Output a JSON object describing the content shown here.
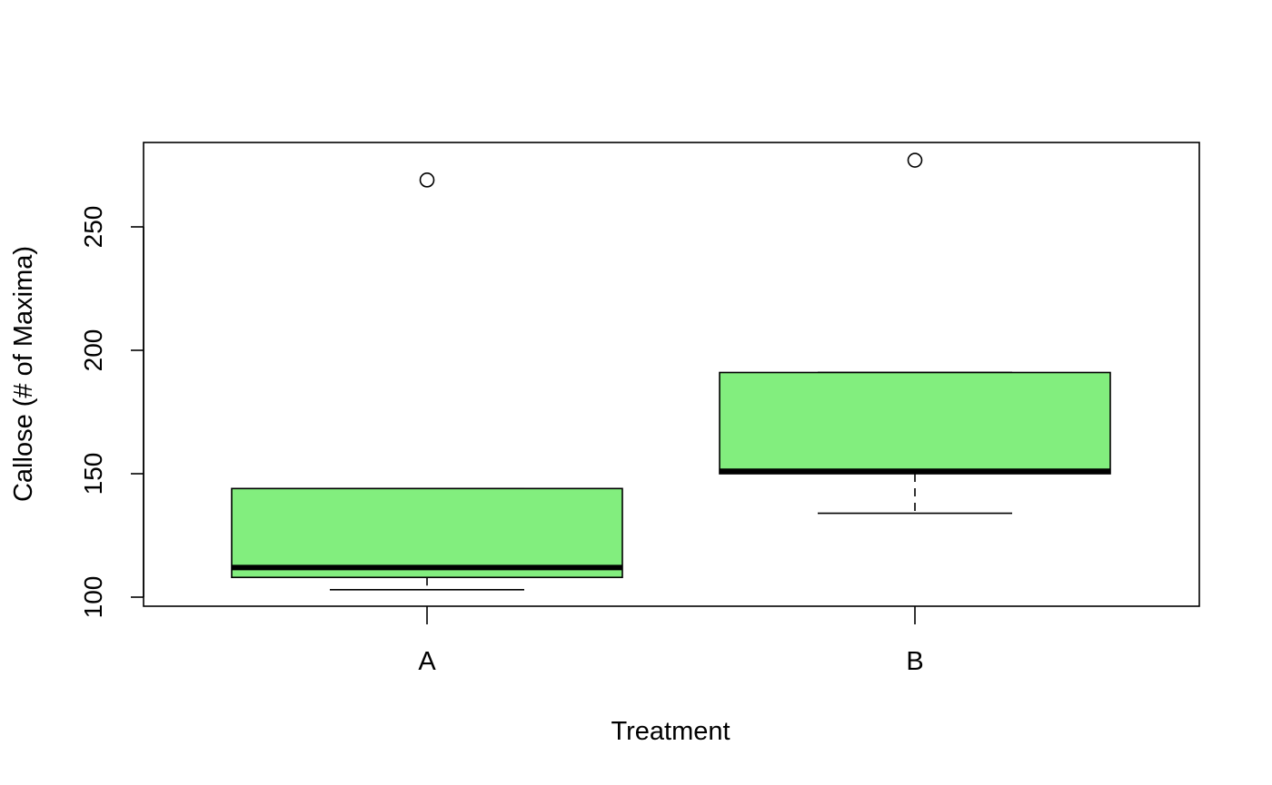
{
  "chart_data": {
    "type": "boxplot",
    "xlabel": "Treatment",
    "ylabel": "Callose (# of Maxima)",
    "categories": [
      "A",
      "B"
    ],
    "boxes": [
      {
        "category": "A",
        "whisker_low": 103,
        "q1": 108,
        "median": 112,
        "q3": 144,
        "whisker_high": 144,
        "outliers": [
          269
        ]
      },
      {
        "category": "B",
        "whisker_low": 134,
        "q1": 150,
        "median": 151,
        "q3": 191,
        "whisker_high": 191,
        "outliers": [
          277
        ]
      }
    ],
    "ylim": [
      96,
      284
    ],
    "yticks": [
      100,
      150,
      200,
      250
    ],
    "ytick_labels": [
      "100",
      "150",
      "200",
      "250"
    ],
    "box_color": "#82EE7E",
    "grid": false,
    "legend": "none"
  }
}
